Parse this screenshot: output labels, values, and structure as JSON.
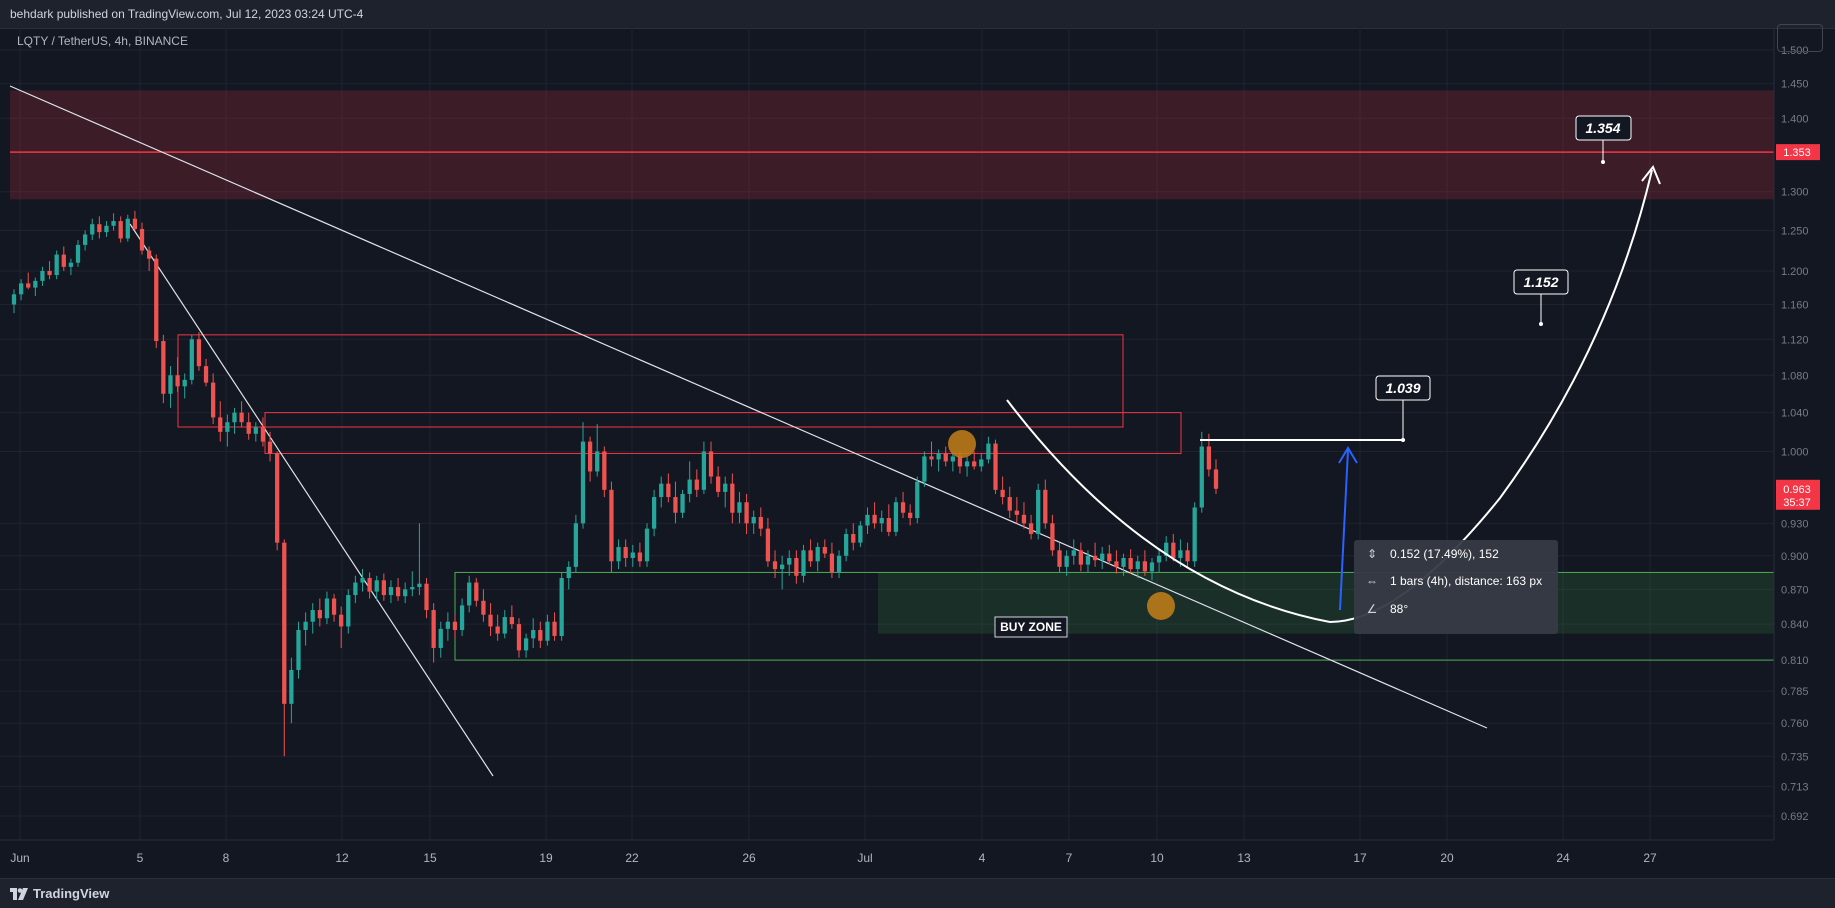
{
  "header": {
    "published_by": "behdark published on TradingView.com, Jul 12, 2023 03:24 UTC-4"
  },
  "symbol": {
    "title": "LQTY / TetherUS, 4h, BINANCE"
  },
  "footer": {
    "brand": "TradingView"
  },
  "colors": {
    "background": "#131722",
    "up_candle": "#26a69a",
    "down_candle": "#ef5350",
    "resistance_zone": "#f23645",
    "buy_zone": "#4caf50",
    "annotation_arrow_blue": "#2962ff",
    "price_badge_red": "#f23645",
    "highlight_circle": "#c47f17"
  },
  "chart_data": {
    "type": "candlestick",
    "interval": "4h",
    "ylim": [
      0.68,
      1.52
    ],
    "y_scale": "log",
    "price_axis_ticks": [
      "1.500",
      "1.450",
      "1.400",
      "1.353",
      "1.300",
      "1.250",
      "1.200",
      "1.160",
      "1.120",
      "1.080",
      "1.040",
      "1.000",
      "0.963",
      "0.930",
      "0.900",
      "0.870",
      "0.840",
      "0.810",
      "0.785",
      "0.760",
      "0.735",
      "0.713",
      "0.692"
    ],
    "time_axis_ticks": [
      "Jun",
      "5",
      "8",
      "12",
      "15",
      "19",
      "22",
      "26",
      "Jul",
      "4",
      "7",
      "10",
      "13",
      "17",
      "20",
      "24",
      "27"
    ],
    "current_price": "0.963",
    "countdown": "35:37",
    "resistance_level": "1.353",
    "targets": [
      {
        "label": "1.039",
        "value": 1.039
      },
      {
        "label": "1.152",
        "value": 1.152
      },
      {
        "label": "1.354",
        "value": 1.354
      }
    ],
    "buy_zone": {
      "label": "BUY ZONE",
      "top": 0.885,
      "bottom": 0.81,
      "inner_bottom": 0.832
    },
    "resistance_zone": {
      "top": 1.44,
      "bottom": 1.29,
      "line": 1.353
    },
    "supply_boxes": [
      {
        "top": 1.125,
        "bottom": 1.025
      },
      {
        "top": 1.04,
        "bottom": 0.998
      }
    ],
    "measure_tooltip": {
      "price_change": "0.152 (17.49%), 152",
      "bars": "1 bars (4h), distance: 163 px",
      "angle": "88°"
    },
    "candles": [
      [
        1.16,
        1.178,
        1.15,
        1.172
      ],
      [
        1.172,
        1.19,
        1.165,
        1.185
      ],
      [
        1.185,
        1.198,
        1.178,
        1.18
      ],
      [
        1.18,
        1.192,
        1.17,
        1.188
      ],
      [
        1.188,
        1.205,
        1.182,
        1.2
      ],
      [
        1.2,
        1.212,
        1.19,
        1.195
      ],
      [
        1.195,
        1.225,
        1.19,
        1.22
      ],
      [
        1.22,
        1.23,
        1.2,
        1.205
      ],
      [
        1.205,
        1.215,
        1.195,
        1.21
      ],
      [
        1.21,
        1.238,
        1.205,
        1.232
      ],
      [
        1.232,
        1.25,
        1.225,
        1.245
      ],
      [
        1.245,
        1.265,
        1.238,
        1.258
      ],
      [
        1.258,
        1.268,
        1.24,
        1.248
      ],
      [
        1.248,
        1.262,
        1.242,
        1.256
      ],
      [
        1.256,
        1.272,
        1.25,
        1.262
      ],
      [
        1.262,
        1.268,
        1.235,
        1.24
      ],
      [
        1.24,
        1.27,
        1.236,
        1.265
      ],
      [
        1.265,
        1.275,
        1.25,
        1.252
      ],
      [
        1.252,
        1.26,
        1.22,
        1.225
      ],
      [
        1.225,
        1.23,
        1.2,
        1.215
      ],
      [
        1.215,
        1.22,
        1.11,
        1.118
      ],
      [
        1.118,
        1.125,
        1.05,
        1.06
      ],
      [
        1.06,
        1.09,
        1.045,
        1.08
      ],
      [
        1.08,
        1.1,
        1.062,
        1.068
      ],
      [
        1.068,
        1.082,
        1.055,
        1.075
      ],
      [
        1.075,
        1.125,
        1.07,
        1.12
      ],
      [
        1.12,
        1.128,
        1.085,
        1.09
      ],
      [
        1.09,
        1.098,
        1.068,
        1.072
      ],
      [
        1.072,
        1.082,
        1.028,
        1.035
      ],
      [
        1.035,
        1.052,
        1.01,
        1.02
      ],
      [
        1.02,
        1.038,
        1.005,
        1.03
      ],
      [
        1.03,
        1.045,
        1.018,
        1.04
      ],
      [
        1.04,
        1.052,
        1.025,
        1.03
      ],
      [
        1.03,
        1.04,
        1.012,
        1.018
      ],
      [
        1.018,
        1.03,
        1.01,
        1.025
      ],
      [
        1.025,
        1.035,
        1.005,
        1.01
      ],
      [
        1.01,
        1.02,
        0.99,
        0.998
      ],
      [
        0.998,
        1.0,
        0.905,
        0.912
      ],
      [
        0.912,
        0.915,
        0.735,
        0.775
      ],
      [
        0.775,
        0.812,
        0.76,
        0.802
      ],
      [
        0.802,
        0.842,
        0.795,
        0.835
      ],
      [
        0.835,
        0.85,
        0.822,
        0.842
      ],
      [
        0.842,
        0.858,
        0.832,
        0.852
      ],
      [
        0.852,
        0.862,
        0.838,
        0.845
      ],
      [
        0.845,
        0.868,
        0.84,
        0.862
      ],
      [
        0.862,
        0.866,
        0.842,
        0.848
      ],
      [
        0.848,
        0.855,
        0.82,
        0.838
      ],
      [
        0.838,
        0.87,
        0.832,
        0.865
      ],
      [
        0.865,
        0.882,
        0.858,
        0.876
      ],
      [
        0.876,
        0.888,
        0.868,
        0.88
      ],
      [
        0.88,
        0.885,
        0.862,
        0.868
      ],
      [
        0.868,
        0.882,
        0.86,
        0.878
      ],
      [
        0.878,
        0.884,
        0.86,
        0.865
      ],
      [
        0.865,
        0.878,
        0.858,
        0.872
      ],
      [
        0.872,
        0.88,
        0.86,
        0.864
      ],
      [
        0.864,
        0.876,
        0.858,
        0.87
      ],
      [
        0.87,
        0.886,
        0.864,
        0.872
      ],
      [
        0.872,
        0.93,
        0.865,
        0.875
      ],
      [
        0.875,
        0.88,
        0.845,
        0.852
      ],
      [
        0.852,
        0.858,
        0.808,
        0.82
      ],
      [
        0.82,
        0.842,
        0.812,
        0.836
      ],
      [
        0.836,
        0.85,
        0.826,
        0.842
      ],
      [
        0.842,
        0.848,
        0.828,
        0.835
      ],
      [
        0.835,
        0.862,
        0.83,
        0.856
      ],
      [
        0.856,
        0.882,
        0.85,
        0.876
      ],
      [
        0.876,
        0.88,
        0.855,
        0.86
      ],
      [
        0.86,
        0.87,
        0.842,
        0.848
      ],
      [
        0.848,
        0.858,
        0.83,
        0.838
      ],
      [
        0.838,
        0.848,
        0.826,
        0.832
      ],
      [
        0.832,
        0.852,
        0.828,
        0.846
      ],
      [
        0.846,
        0.856,
        0.836,
        0.84
      ],
      [
        0.84,
        0.845,
        0.812,
        0.818
      ],
      [
        0.818,
        0.832,
        0.812,
        0.828
      ],
      [
        0.828,
        0.845,
        0.82,
        0.835
      ],
      [
        0.835,
        0.842,
        0.82,
        0.826
      ],
      [
        0.826,
        0.848,
        0.822,
        0.842
      ],
      [
        0.842,
        0.85,
        0.826,
        0.83
      ],
      [
        0.83,
        0.885,
        0.826,
        0.88
      ],
      [
        0.88,
        0.895,
        0.87,
        0.89
      ],
      [
        0.89,
        0.938,
        0.885,
        0.93
      ],
      [
        0.93,
        1.03,
        0.925,
        1.01
      ],
      [
        1.01,
        1.015,
        0.97,
        0.98
      ],
      [
        0.98,
        1.028,
        0.975,
        1.0
      ],
      [
        1.0,
        1.005,
        0.955,
        0.962
      ],
      [
        0.962,
        0.97,
        0.885,
        0.895
      ],
      [
        0.895,
        0.915,
        0.888,
        0.908
      ],
      [
        0.908,
        0.915,
        0.89,
        0.898
      ],
      [
        0.898,
        0.91,
        0.89,
        0.903
      ],
      [
        0.903,
        0.912,
        0.89,
        0.895
      ],
      [
        0.895,
        0.93,
        0.89,
        0.925
      ],
      [
        0.925,
        0.962,
        0.918,
        0.955
      ],
      [
        0.955,
        0.975,
        0.945,
        0.968
      ],
      [
        0.968,
        0.978,
        0.95,
        0.955
      ],
      [
        0.955,
        0.97,
        0.93,
        0.94
      ],
      [
        0.94,
        0.962,
        0.935,
        0.958
      ],
      [
        0.958,
        0.99,
        0.95,
        0.972
      ],
      [
        0.972,
        0.982,
        0.955,
        0.962
      ],
      [
        0.962,
        1.01,
        0.958,
        1.0
      ],
      [
        1.0,
        1.01,
        0.968,
        0.975
      ],
      [
        0.975,
        0.985,
        0.955,
        0.96
      ],
      [
        0.96,
        0.975,
        0.945,
        0.968
      ],
      [
        0.968,
        0.978,
        0.93,
        0.94
      ],
      [
        0.94,
        0.96,
        0.93,
        0.95
      ],
      [
        0.95,
        0.958,
        0.92,
        0.93
      ],
      [
        0.93,
        0.942,
        0.92,
        0.936
      ],
      [
        0.936,
        0.945,
        0.918,
        0.925
      ],
      [
        0.925,
        0.935,
        0.89,
        0.895
      ],
      [
        0.895,
        0.905,
        0.88,
        0.888
      ],
      [
        0.888,
        0.9,
        0.87,
        0.892
      ],
      [
        0.892,
        0.905,
        0.882,
        0.898
      ],
      [
        0.898,
        0.905,
        0.875,
        0.882
      ],
      [
        0.882,
        0.91,
        0.876,
        0.905
      ],
      [
        0.905,
        0.915,
        0.89,
        0.895
      ],
      [
        0.895,
        0.912,
        0.886,
        0.908
      ],
      [
        0.908,
        0.915,
        0.898,
        0.902
      ],
      [
        0.902,
        0.912,
        0.88,
        0.885
      ],
      [
        0.885,
        0.905,
        0.88,
        0.9
      ],
      [
        0.9,
        0.925,
        0.895,
        0.92
      ],
      [
        0.92,
        0.93,
        0.905,
        0.912
      ],
      [
        0.912,
        0.932,
        0.908,
        0.928
      ],
      [
        0.928,
        0.945,
        0.92,
        0.938
      ],
      [
        0.938,
        0.95,
        0.925,
        0.93
      ],
      [
        0.93,
        0.942,
        0.922,
        0.935
      ],
      [
        0.935,
        0.948,
        0.918,
        0.922
      ],
      [
        0.922,
        0.955,
        0.918,
        0.95
      ],
      [
        0.95,
        0.96,
        0.935,
        0.94
      ],
      [
        0.94,
        0.948,
        0.928,
        0.935
      ],
      [
        0.935,
        0.975,
        0.93,
        0.97
      ],
      [
        0.97,
        1.0,
        0.965,
        0.995
      ],
      [
        0.995,
        1.01,
        0.985,
        0.992
      ],
      [
        0.992,
        1.002,
        0.98,
        0.998
      ],
      [
        0.998,
        1.005,
        0.985,
        0.99
      ],
      [
        0.99,
        1.0,
        0.98,
        0.995
      ],
      [
        0.995,
        1.0,
        0.978,
        0.985
      ],
      [
        0.985,
        0.995,
        0.975,
        0.99
      ],
      [
        0.99,
        1.0,
        0.982,
        0.985
      ],
      [
        0.985,
        0.998,
        0.98,
        0.992
      ],
      [
        0.992,
        1.015,
        0.988,
        1.008
      ],
      [
        1.008,
        1.012,
        0.958,
        0.962
      ],
      [
        0.962,
        0.975,
        0.948,
        0.955
      ],
      [
        0.955,
        0.965,
        0.935,
        0.942
      ],
      [
        0.942,
        0.955,
        0.93,
        0.938
      ],
      [
        0.938,
        0.95,
        0.925,
        0.93
      ],
      [
        0.93,
        0.938,
        0.915,
        0.92
      ],
      [
        0.92,
        0.968,
        0.915,
        0.962
      ],
      [
        0.962,
        0.972,
        0.925,
        0.93
      ],
      [
        0.93,
        0.938,
        0.9,
        0.905
      ],
      [
        0.905,
        0.912,
        0.885,
        0.89
      ],
      [
        0.89,
        0.905,
        0.882,
        0.9
      ],
      [
        0.9,
        0.915,
        0.892,
        0.905
      ],
      [
        0.905,
        0.912,
        0.886,
        0.892
      ],
      [
        0.892,
        0.905,
        0.885,
        0.9
      ],
      [
        0.9,
        0.912,
        0.89,
        0.896
      ],
      [
        0.896,
        0.908,
        0.888,
        0.902
      ],
      [
        0.902,
        0.91,
        0.892,
        0.895
      ],
      [
        0.895,
        0.905,
        0.884,
        0.89
      ],
      [
        0.89,
        0.902,
        0.882,
        0.898
      ],
      [
        0.898,
        0.906,
        0.884,
        0.888
      ],
      [
        0.888,
        0.9,
        0.88,
        0.895
      ],
      [
        0.895,
        0.905,
        0.882,
        0.886
      ],
      [
        0.886,
        0.898,
        0.878,
        0.894
      ],
      [
        0.894,
        0.905,
        0.885,
        0.9
      ],
      [
        0.9,
        0.918,
        0.895,
        0.912
      ],
      [
        0.912,
        0.92,
        0.895,
        0.898
      ],
      [
        0.898,
        0.915,
        0.89,
        0.905
      ],
      [
        0.905,
        0.912,
        0.89,
        0.895
      ],
      [
        0.895,
        0.95,
        0.89,
        0.945
      ],
      [
        0.945,
        1.02,
        0.94,
        1.005
      ],
      [
        1.005,
        1.018,
        0.975,
        0.982
      ],
      [
        0.982,
        0.992,
        0.958,
        0.963
      ]
    ]
  }
}
